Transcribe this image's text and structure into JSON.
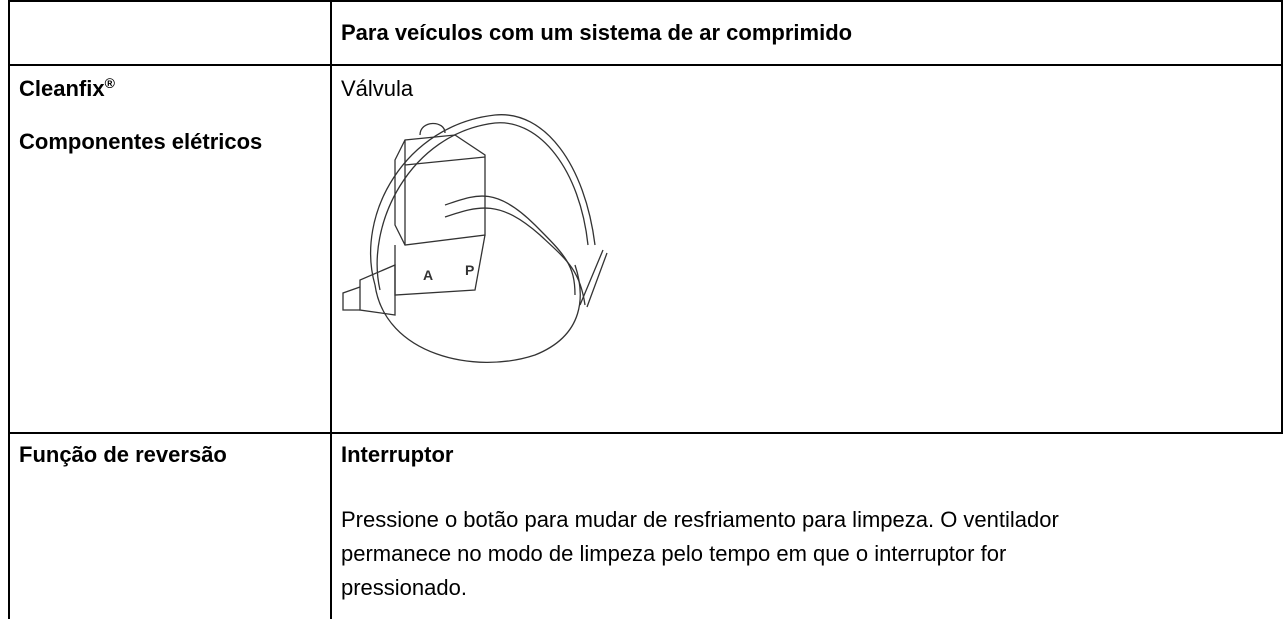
{
  "table": {
    "header": {
      "left": "",
      "right": "Para veículos com um sistema de ar comprimido"
    },
    "rows": [
      {
        "brand": "Cleanfix",
        "brand_mark": "®",
        "left_sub": "Componentes elétricos",
        "right_title": "Válvula",
        "image_labels": [
          "A",
          "P"
        ]
      },
      {
        "left": "Função de reversão",
        "right_title": "Interruptor",
        "right_text": "Pressione o botão para mudar de resfriamento para limpeza. O ventilador permanece no modo de limpeza pelo tempo em que o interruptor for pressionado."
      }
    ]
  }
}
